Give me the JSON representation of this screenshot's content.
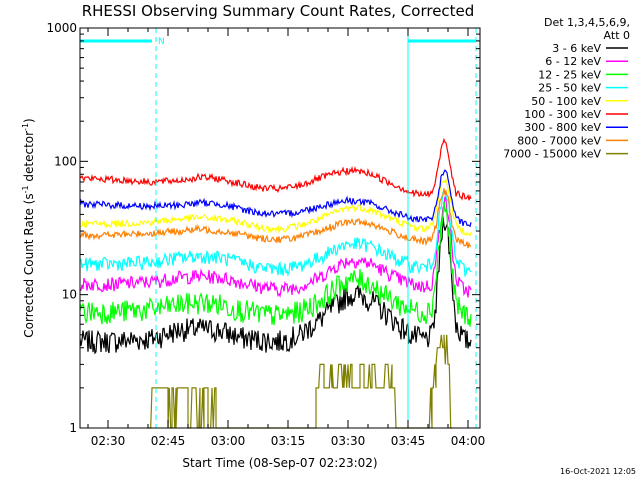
{
  "chart_data": {
    "type": "line",
    "title": "RHESSI Observing Summary Count Rates, Corrected",
    "xlabel": "Start Time (08-Sep-07 02:23:02)",
    "ylabel_main": "Corrected Count Rate (s",
    "ylabel_sup1": "-1",
    "ylabel_mid": " detector",
    "ylabel_sup2": "-1",
    "ylabel_end": ")",
    "y_scale": "log",
    "ylim": [
      1,
      1000
    ],
    "y_ticks": [
      {
        "value": 1,
        "label": "1"
      },
      {
        "value": 10,
        "label": "10"
      },
      {
        "value": 100,
        "label": "100"
      },
      {
        "value": 1000,
        "label": "1000"
      }
    ],
    "xlim_minutes": [
      0,
      100
    ],
    "x_ticks": [
      {
        "minute": 7,
        "label": "02:30"
      },
      {
        "minute": 22,
        "label": "02:45"
      },
      {
        "minute": 37,
        "label": "03:00"
      },
      {
        "minute": 52,
        "label": "03:15"
      },
      {
        "minute": 67,
        "label": "03:30"
      },
      {
        "minute": 82,
        "label": "03:45"
      },
      {
        "minute": 97,
        "label": "04:00"
      }
    ],
    "legend_placement": "right",
    "legend_header_1": "Det 1,3,4,5,6,9,",
    "legend_header_2": "Att 0",
    "series": [
      {
        "name": "3 - 6 keV",
        "color": "#000000",
        "x": [
          0,
          8,
          18,
          25,
          30,
          35,
          40,
          45,
          50,
          55,
          60,
          65,
          67,
          70,
          73,
          76,
          80,
          83,
          86,
          88,
          89,
          90,
          91,
          92,
          93,
          94,
          96,
          98
        ],
        "y": [
          4.5,
          4.5,
          4.7,
          5.5,
          5.6,
          5.4,
          4.8,
          4.6,
          4.5,
          5.0,
          6.5,
          9.0,
          10.0,
          10.0,
          9.0,
          7.5,
          5.8,
          5.0,
          4.6,
          5.0,
          8.0,
          20,
          40,
          28,
          12,
          6.0,
          4.6,
          4.4
        ]
      },
      {
        "name": "6 - 12 keV",
        "color": "#ff00ff",
        "x": [
          0,
          8,
          18,
          25,
          30,
          35,
          40,
          45,
          50,
          55,
          60,
          65,
          67,
          70,
          73,
          76,
          80,
          83,
          86,
          88,
          89,
          90,
          91,
          92,
          93,
          94,
          96,
          98
        ],
        "y": [
          12,
          12,
          12.5,
          13.5,
          13.8,
          13.5,
          12.5,
          11.5,
          11,
          11.5,
          13.5,
          17,
          18,
          18,
          17,
          15,
          13,
          12,
          11.5,
          12,
          18,
          32,
          52,
          42,
          22,
          13,
          11,
          10.5
        ]
      },
      {
        "name": "12 - 25 keV",
        "color": "#00ff00",
        "x": [
          0,
          8,
          18,
          25,
          30,
          35,
          40,
          45,
          50,
          55,
          60,
          65,
          67,
          70,
          73,
          76,
          80,
          83,
          86,
          88,
          89,
          90,
          91,
          92,
          93,
          94,
          96,
          98
        ],
        "y": [
          7.5,
          7.5,
          7.8,
          8.5,
          8.8,
          8.5,
          7.8,
          7.2,
          7.0,
          7.5,
          9.0,
          12,
          13,
          13,
          12,
          10,
          8.5,
          7.8,
          7.4,
          8,
          13,
          26,
          46,
          34,
          15,
          8.5,
          7.2,
          7.0
        ]
      },
      {
        "name": "25 - 50 keV",
        "color": "#00ffff",
        "x": [
          0,
          8,
          18,
          25,
          30,
          35,
          40,
          45,
          50,
          55,
          60,
          65,
          67,
          70,
          73,
          76,
          80,
          83,
          86,
          88,
          89,
          90,
          91,
          92,
          93,
          94,
          96,
          98
        ],
        "y": [
          17,
          17,
          17.5,
          19,
          19.5,
          19,
          17.5,
          16,
          15.5,
          16.5,
          19,
          23,
          24,
          24,
          23,
          20.5,
          18,
          16.5,
          16,
          17,
          24,
          40,
          60,
          48,
          28,
          18,
          15.5,
          15
        ]
      },
      {
        "name": "50 - 100 keV",
        "color": "#ffff00",
        "x": [
          0,
          8,
          18,
          25,
          30,
          35,
          40,
          45,
          50,
          55,
          60,
          65,
          67,
          70,
          73,
          76,
          80,
          83,
          86,
          88,
          89,
          90,
          91,
          92,
          93,
          94,
          96,
          98
        ],
        "y": [
          34,
          34,
          35,
          37,
          38,
          37,
          35,
          32,
          31,
          33,
          37,
          43,
          45,
          45,
          43,
          39,
          35,
          32.5,
          31,
          33,
          42,
          60,
          75,
          65,
          45,
          33,
          30,
          29
        ]
      },
      {
        "name": "100 - 300 keV",
        "color": "#ff0000",
        "x": [
          0,
          8,
          18,
          25,
          30,
          35,
          40,
          45,
          50,
          55,
          60,
          65,
          67,
          70,
          73,
          76,
          80,
          83,
          86,
          88,
          89,
          90,
          91,
          92,
          93,
          94,
          96,
          98
        ],
        "y": [
          75,
          73,
          70,
          72,
          76,
          74,
          68,
          63,
          62,
          66,
          75,
          83,
          85,
          84,
          80,
          72,
          64,
          58,
          56,
          58,
          72,
          110,
          150,
          120,
          78,
          58,
          54,
          53
        ]
      },
      {
        "name": "300 - 800 keV",
        "color": "#0000ff",
        "x": [
          0,
          8,
          18,
          25,
          30,
          35,
          40,
          45,
          50,
          55,
          60,
          65,
          67,
          70,
          73,
          76,
          80,
          83,
          86,
          88,
          89,
          90,
          91,
          92,
          93,
          94,
          96,
          98
        ],
        "y": [
          48,
          47,
          46,
          47,
          49,
          48,
          44,
          41,
          40,
          42,
          46,
          50,
          51,
          50,
          48,
          44,
          40,
          37,
          36,
          37,
          46,
          68,
          88,
          75,
          50,
          37,
          34,
          33
        ]
      },
      {
        "name": "800 - 7000 keV",
        "color": "#ff8000",
        "x": [
          0,
          8,
          18,
          25,
          30,
          35,
          40,
          45,
          50,
          55,
          60,
          65,
          67,
          70,
          73,
          76,
          80,
          83,
          86,
          88,
          89,
          90,
          91,
          92,
          93,
          94,
          96,
          98
        ],
        "y": [
          28,
          28,
          29,
          30,
          31,
          30,
          28.5,
          26.5,
          26,
          27,
          30,
          34,
          35,
          35,
          34,
          31,
          28,
          26,
          25,
          26,
          33,
          48,
          62,
          52,
          34,
          26,
          24,
          23.5
        ]
      },
      {
        "name": "7000 - 15000 keV",
        "color": "#808000",
        "x": [
          17,
          18,
          21,
          22,
          23,
          24,
          25,
          26,
          27,
          28,
          29,
          30,
          31,
          32,
          33,
          34,
          58,
          59,
          60,
          61,
          62,
          63,
          64,
          65,
          66,
          67,
          68,
          69,
          70,
          71,
          72,
          73,
          74,
          75,
          76,
          77,
          78,
          79,
          87,
          88,
          89,
          90,
          91,
          92,
          93
        ],
        "y": [
          1,
          2,
          2,
          1,
          2,
          1,
          2,
          2,
          1,
          2,
          2,
          1,
          2,
          1,
          2,
          1,
          1,
          2,
          3,
          2,
          2,
          3,
          2,
          3,
          2,
          3,
          2,
          2,
          3,
          2,
          2,
          3,
          2,
          2,
          2,
          3,
          2,
          1,
          1,
          2,
          3,
          4,
          5,
          3,
          1
        ]
      }
    ],
    "annotations": {
      "n_marker": "N",
      "vertical_lines_minutes": [
        0,
        19,
        82,
        99
      ]
    },
    "footer_date": "16-Oct-2021 12:05"
  }
}
